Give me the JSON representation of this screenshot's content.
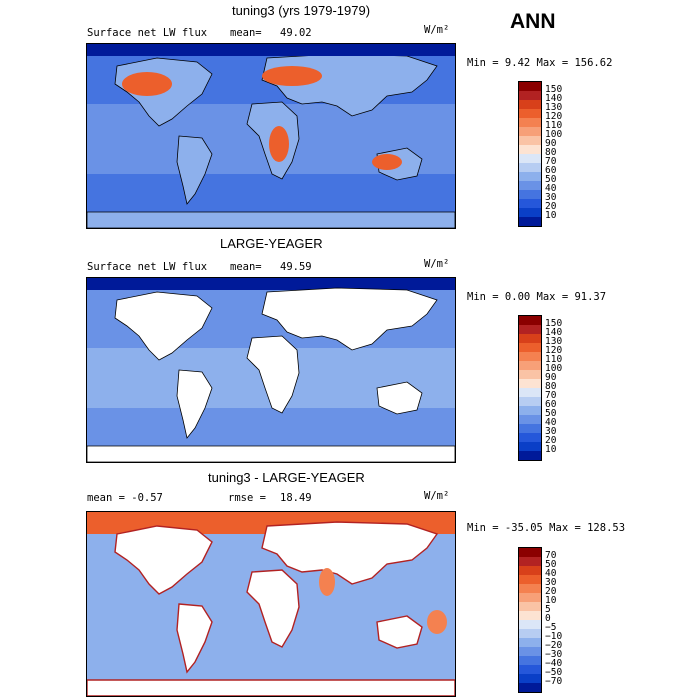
{
  "season": "ANN",
  "panels": [
    {
      "title": "tuning3 (yrs 1979-1979)",
      "left_label": "Surface net LW flux",
      "mean_label": "mean=",
      "mean_value": "49.02",
      "units": "W/m²",
      "range_text": "Min =   9.42 Max = 156.62",
      "colorbar": {
        "levels": [
          "150",
          "140",
          "130",
          "120",
          "110",
          "100",
          "90",
          "80",
          "70",
          "60",
          "50",
          "40",
          "30",
          "20",
          "10"
        ],
        "colors": [
          "#8b0000",
          "#b22222",
          "#d8401a",
          "#ec5f2c",
          "#f48150",
          "#f7a078",
          "#fac3a5",
          "#fde3d2",
          "#dbe6f7",
          "#b7cdf2",
          "#8db0ec",
          "#6a92e6",
          "#4574e0",
          "#2557da",
          "#0a3fc7",
          "#001a99"
        ]
      }
    },
    {
      "title": "LARGE-YEAGER",
      "left_label": "Surface net LW flux",
      "mean_label": "mean=",
      "mean_value": "49.59",
      "units": "W/m²",
      "range_text": "Min =   0.00 Max =  91.37",
      "colorbar": {
        "levels": [
          "150",
          "140",
          "130",
          "120",
          "110",
          "100",
          "90",
          "80",
          "70",
          "60",
          "50",
          "40",
          "30",
          "20",
          "10"
        ],
        "colors": [
          "#8b0000",
          "#b22222",
          "#d8401a",
          "#ec5f2c",
          "#f48150",
          "#f7a078",
          "#fac3a5",
          "#fde3d2",
          "#dbe6f7",
          "#b7cdf2",
          "#8db0ec",
          "#6a92e6",
          "#4574e0",
          "#2557da",
          "#0a3fc7",
          "#001a99"
        ]
      }
    },
    {
      "title": "tuning3 - LARGE-YEAGER",
      "left_label": "mean =  -0.57",
      "mean_label": "rmse =",
      "mean_value": "18.49",
      "units": "W/m²",
      "range_text": "Min = -35.05 Max = 128.53",
      "colorbar": {
        "levels": [
          "70",
          "50",
          "40",
          "30",
          "20",
          "10",
          "5",
          "0",
          "−5",
          "−10",
          "−20",
          "−30",
          "−40",
          "−50",
          "−70"
        ],
        "colors": [
          "#8b0000",
          "#b22222",
          "#d8401a",
          "#ec5f2c",
          "#f48150",
          "#f7a078",
          "#fac3a5",
          "#fde3d2",
          "#dbe6f7",
          "#b7cdf2",
          "#8db0ec",
          "#6a92e6",
          "#4574e0",
          "#2557da",
          "#0a3fc7",
          "#001a99"
        ]
      }
    }
  ]
}
